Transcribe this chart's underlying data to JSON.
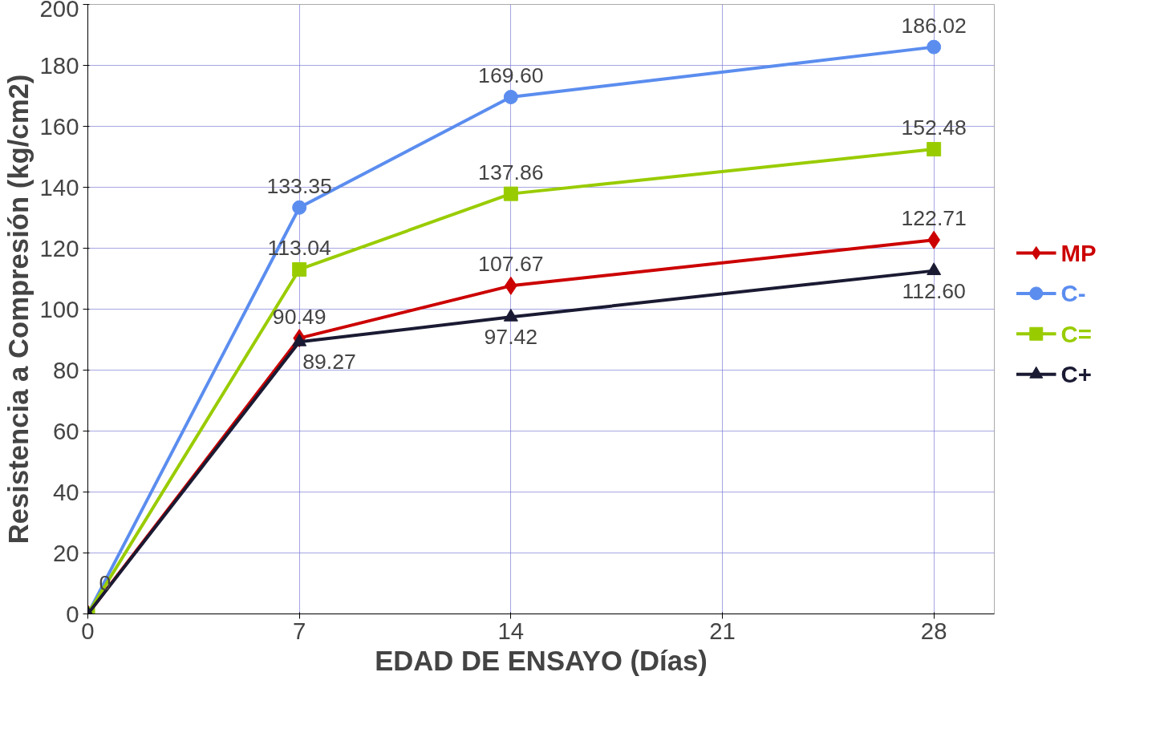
{
  "chart_data": {
    "type": "line",
    "xlabel": "EDAD DE ENSAYO (Días)",
    "ylabel": "Resistencia a Compresión (kg/cm2)",
    "x": [
      0,
      7,
      14,
      28
    ],
    "xlim": [
      0,
      30
    ],
    "xticks": [
      0,
      7,
      14,
      21,
      28
    ],
    "ylim": [
      0,
      200
    ],
    "yticks": [
      0,
      20,
      40,
      60,
      80,
      100,
      120,
      140,
      160,
      180,
      200
    ],
    "grid": true,
    "legend": "right",
    "data_labels": true,
    "series": [
      {
        "name": "MP",
        "color": "#cc0000",
        "marker": "diamond",
        "values": [
          0,
          90.49,
          107.67,
          122.71
        ],
        "value_labels": [
          null,
          "90.49",
          "107.67",
          "122.71"
        ]
      },
      {
        "name": "C-",
        "color": "#5b8def",
        "marker": "circle",
        "values": [
          0,
          133.35,
          169.6,
          186.02
        ],
        "value_labels": [
          null,
          "133.35",
          "169.60",
          "186.02"
        ]
      },
      {
        "name": "C=",
        "color": "#99cc00",
        "marker": "square",
        "values": [
          0,
          113.04,
          137.86,
          152.48
        ],
        "value_labels": [
          null,
          "113.04",
          "137.86",
          "152.48"
        ]
      },
      {
        "name": "C+",
        "color": "#1a1a33",
        "marker": "triangle",
        "values": [
          0,
          89.27,
          97.42,
          112.6
        ],
        "value_labels": [
          "0",
          "89.27",
          "97.42",
          "112.60"
        ]
      }
    ]
  }
}
